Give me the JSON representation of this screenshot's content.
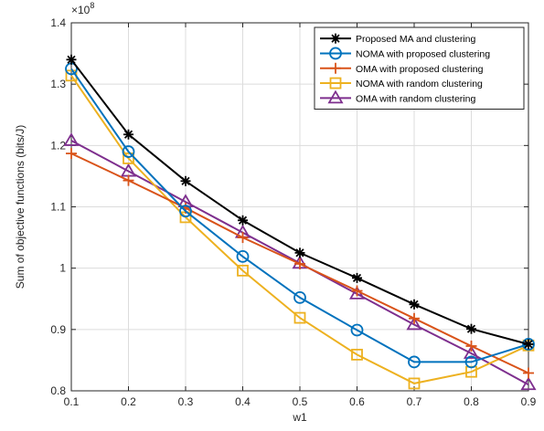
{
  "chart_data": {
    "type": "line",
    "x": [
      0.1,
      0.2,
      0.3,
      0.4,
      0.5,
      0.6,
      0.7,
      0.8,
      0.9
    ],
    "xlabel": "w1",
    "ylabel": "Sum of objective functions (bits/J)",
    "xlim": [
      0.1,
      0.9
    ],
    "ylim": [
      0.8,
      1.4
    ],
    "y_multiplier_base": "×10",
    "y_multiplier_exp": "8",
    "xticks": [
      "0.1",
      "0.2",
      "0.3",
      "0.4",
      "0.5",
      "0.6",
      "0.7",
      "0.8",
      "0.9"
    ],
    "yticks": [
      "0.8",
      "0.9",
      "1",
      "1.1",
      "1.2",
      "1.3",
      "1.4"
    ],
    "grid": true,
    "legend_position": "top-right",
    "series": [
      {
        "name": "Proposed MA and clustering",
        "color": "#000000",
        "marker": "asterisk",
        "values": [
          1.34,
          1.218,
          1.142,
          1.078,
          1.025,
          0.984,
          0.941,
          0.901,
          0.876
        ]
      },
      {
        "name": "NOMA with proposed clustering",
        "color": "#0072BD",
        "marker": "circle",
        "values": [
          1.325,
          1.19,
          1.093,
          1.019,
          0.952,
          0.899,
          0.847,
          0.847,
          0.876
        ]
      },
      {
        "name": "OMA with proposed clustering",
        "color": "#D95319",
        "marker": "plus",
        "values": [
          1.187,
          1.143,
          1.098,
          1.05,
          1.007,
          0.963,
          0.918,
          0.873,
          0.829
        ]
      },
      {
        "name": "NOMA with random clustering",
        "color": "#EDB120",
        "marker": "square",
        "values": [
          1.314,
          1.179,
          1.083,
          0.996,
          0.919,
          0.859,
          0.812,
          0.831,
          0.874
        ]
      },
      {
        "name": "OMA with random clustering",
        "color": "#7E2F8E",
        "marker": "triangle",
        "values": [
          1.208,
          1.158,
          1.108,
          1.058,
          1.008,
          0.958,
          0.908,
          0.861,
          0.81
        ]
      }
    ]
  }
}
